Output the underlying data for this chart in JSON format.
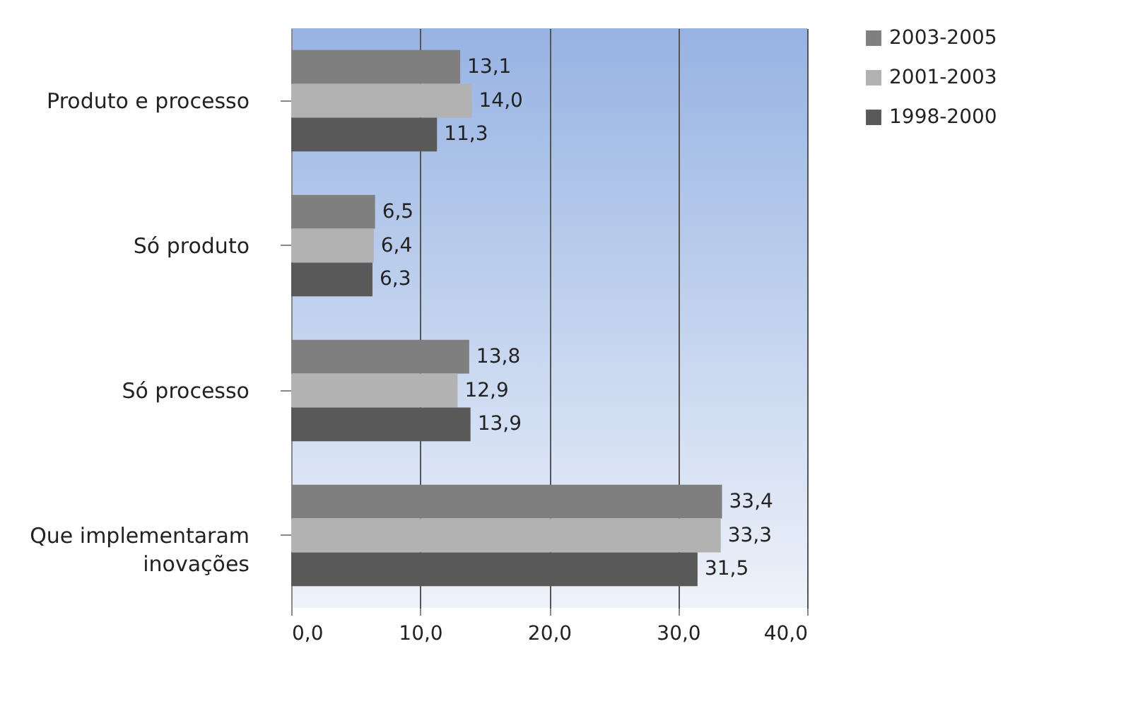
{
  "chart_data": {
    "type": "bar",
    "orientation": "horizontal",
    "categories": [
      "Produto e processo",
      "Só produto",
      "Só processo",
      "Que implementaram inovações"
    ],
    "series": [
      {
        "name": "2003-2005",
        "color": "#7f7f7f",
        "values": [
          13.1,
          6.5,
          13.8,
          33.4
        ],
        "value_labels": [
          "13,1",
          "6,5",
          "13,8",
          "33,4"
        ]
      },
      {
        "name": "2001-2003",
        "color": "#b2b2b2",
        "values": [
          14.0,
          6.4,
          12.9,
          33.3
        ],
        "value_labels": [
          "14,0",
          "6,4",
          "12,9",
          "33,3"
        ]
      },
      {
        "name": "1998-2000",
        "color": "#595959",
        "values": [
          11.3,
          6.3,
          13.9,
          31.5
        ],
        "value_labels": [
          "11,3",
          "6,3",
          "13,9",
          "31,5"
        ]
      }
    ],
    "xlim": [
      0,
      40
    ],
    "xticks": [
      {
        "value": 0,
        "label": "0,0"
      },
      {
        "value": 10,
        "label": "10,0"
      },
      {
        "value": 20,
        "label": "20,0"
      },
      {
        "value": 30,
        "label": "30,0"
      },
      {
        "value": 40,
        "label": "40,0"
      }
    ],
    "grid": "x",
    "legend": "right"
  }
}
